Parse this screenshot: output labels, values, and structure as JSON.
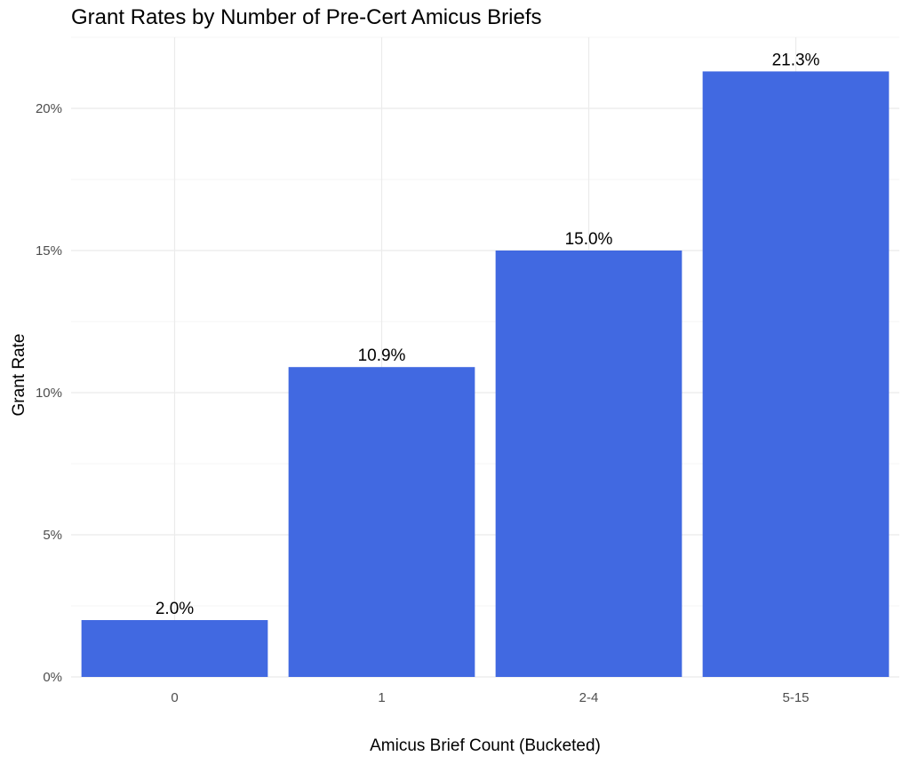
{
  "chart_data": {
    "type": "bar",
    "title": "Grant Rates by Number of Pre-Cert Amicus Briefs",
    "xlabel": "Amicus Brief Count (Bucketed)",
    "ylabel": "Grant Rate",
    "categories": [
      "0",
      "1",
      "2-4",
      "5-15"
    ],
    "values": [
      2.0,
      10.9,
      15.0,
      21.3
    ],
    "data_labels": [
      "2.0%",
      "10.9%",
      "15.0%",
      "21.3%"
    ],
    "yticks": [
      0,
      5,
      10,
      15,
      20
    ],
    "ytick_labels": [
      "0%",
      "5%",
      "10%",
      "15%",
      "20%"
    ],
    "ylim": [
      0,
      22.5
    ],
    "grid": true,
    "bar_color": "#4169E1",
    "grid_color": "#ebebeb"
  }
}
